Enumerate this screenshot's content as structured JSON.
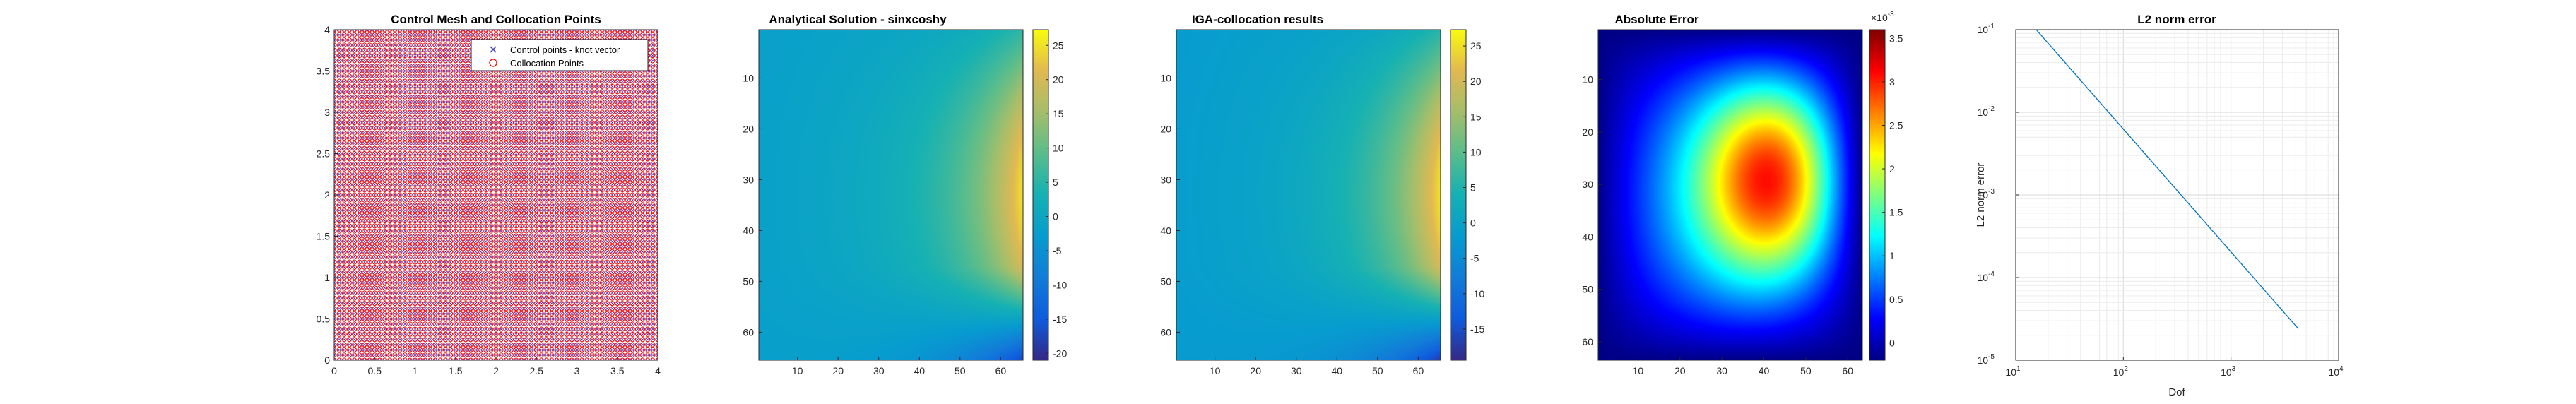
{
  "chart_data": [
    {
      "type": "scatter",
      "title": "Control Mesh and Collocation Points",
      "xlim": [
        0,
        4
      ],
      "ylim": [
        0,
        4
      ],
      "xticks": [
        "0",
        "0.5",
        "1",
        "1.5",
        "2",
        "2.5",
        "3",
        "3.5",
        "4"
      ],
      "yticks": [
        "0",
        "0.5",
        "1",
        "1.5",
        "2",
        "2.5",
        "3",
        "3.5",
        "4"
      ],
      "grid_points_per_side": 65,
      "legend": {
        "placement": "top-right",
        "entries": [
          {
            "label": "Control points - knot vector",
            "marker": "x",
            "color": "#3333cc"
          },
          {
            "label": "Collocation Points",
            "marker": "o",
            "color": "#ff0000"
          }
        ]
      }
    },
    {
      "type": "heatmap",
      "title": "Analytical Solution - sinxcoshy",
      "x_range": [
        1,
        65
      ],
      "y_range": [
        1,
        65
      ],
      "y_reversed": true,
      "xticks": [
        "10",
        "20",
        "30",
        "40",
        "50",
        "60"
      ],
      "yticks": [
        "10",
        "20",
        "30",
        "40",
        "50",
        "60"
      ],
      "colorbar_ticks": [
        "25",
        "20",
        "15",
        "10",
        "5",
        "0",
        "-5",
        "-10",
        "-15",
        "-20"
      ],
      "clim": [
        -21,
        27.3
      ],
      "colormap": "parula"
    },
    {
      "type": "heatmap",
      "title": "IGA-collocation results",
      "x_range": [
        1,
        65
      ],
      "y_range": [
        1,
        65
      ],
      "y_reversed": true,
      "xticks": [
        "10",
        "20",
        "30",
        "40",
        "50",
        "60"
      ],
      "yticks": [
        "10",
        "20",
        "30",
        "40",
        "50",
        "60"
      ],
      "colorbar_ticks": [
        "25",
        "20",
        "15",
        "10",
        "5",
        "0",
        "-5",
        "-10",
        "-15"
      ],
      "clim": [
        -19.4,
        27.3
      ],
      "colormap": "parula"
    },
    {
      "type": "heatmap",
      "title": "Absolute Error",
      "x_range": [
        1,
        63
      ],
      "y_range": [
        1,
        63
      ],
      "y_reversed": true,
      "xticks": [
        "10",
        "20",
        "30",
        "40",
        "50",
        "60"
      ],
      "yticks": [
        "10",
        "20",
        "30",
        "40",
        "50",
        "60"
      ],
      "colorbar_ticks": [
        "3.5",
        "3",
        "2.5",
        "2",
        "1.5",
        "1",
        "0.5",
        "0"
      ],
      "colorbar_exponent": "×10",
      "colorbar_exponent_power": "-3",
      "clim": [
        -0.0002,
        0.0036
      ],
      "colormap": "jet",
      "peak_location": [
        46,
        27
      ]
    },
    {
      "type": "line",
      "title": "L2 norm error",
      "xlabel": "Dof",
      "ylabel": "L2 norm error",
      "xscale": "log",
      "yscale": "log",
      "xlim": [
        10,
        10000
      ],
      "ylim": [
        1e-05,
        0.1
      ],
      "xticks": [
        {
          "base": "10",
          "exp": "1"
        },
        {
          "base": "10",
          "exp": "2"
        },
        {
          "base": "10",
          "exp": "3"
        },
        {
          "base": "10",
          "exp": "4"
        }
      ],
      "yticks": [
        {
          "base": "10",
          "exp": "-1"
        },
        {
          "base": "10",
          "exp": "-2"
        },
        {
          "base": "10",
          "exp": "-3"
        },
        {
          "base": "10",
          "exp": "-4"
        },
        {
          "base": "10",
          "exp": "-5"
        }
      ],
      "grid": true,
      "series": [
        {
          "color": "#0072bd",
          "x": [
            15.5,
            4225
          ],
          "y": [
            0.1,
            2.4e-05
          ]
        }
      ]
    }
  ]
}
